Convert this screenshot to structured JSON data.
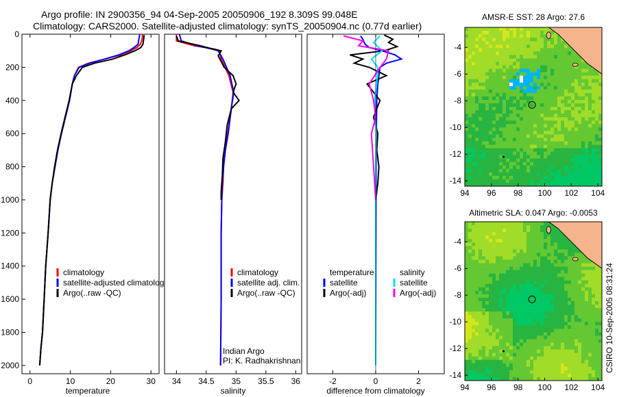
{
  "figure": {
    "title_line1": "Argo profile: IN 2900356_94 04-Sep-2005 20050906_192 8.309S 99.048E",
    "title_line2": "Climatology: CARS2000. Satellite-adjusted climatology: synTS_20050904.nc (0.77d earlier)",
    "footer_vertical": "CSIRO 10-Sep-2005 08:31:24",
    "colors": {
      "climatology": "#ff0000",
      "satellite": "#0000ff",
      "argo": "#000000",
      "salinity_satellite": "#00e0ff",
      "salinity_argo": "#ff00ff",
      "land": "#f5b48c",
      "sea_green": "#3cb44b"
    }
  },
  "chart_data": [
    {
      "id": "temperature",
      "type": "line",
      "xlabel": "temperature",
      "ylabel": "",
      "xlim": [
        -2,
        32
      ],
      "ylim": [
        2050,
        0
      ],
      "xticks": [
        0,
        10,
        20,
        30
      ],
      "yticks": [
        0,
        200,
        400,
        600,
        800,
        1000,
        1200,
        1400,
        1600,
        1800,
        2000
      ],
      "legend": [
        "climatology",
        "satellite-adjusted climatology",
        "Argo(..raw -QC)"
      ],
      "series": [
        {
          "name": "climatology",
          "color": "climatology",
          "x": [
            27.9,
            27.8,
            27.4,
            26.5,
            25.0,
            22.5,
            18.5,
            14.5,
            12.0,
            11.0,
            10.5,
            9.8,
            8.8,
            7.8,
            6.9,
            6.2,
            5.5,
            5.0,
            4.5,
            3.9,
            3.5,
            3.1,
            2.7,
            2.4
          ],
          "y": [
            0,
            30,
            60,
            80,
            100,
            125,
            150,
            175,
            200,
            250,
            300,
            400,
            500,
            600,
            700,
            800,
            900,
            1000,
            1200,
            1400,
            1600,
            1800,
            1900,
            2000
          ]
        },
        {
          "name": "satellite",
          "color": "satellite",
          "x": [
            27.2,
            27.0,
            26.8,
            25.8,
            24.5,
            22.0,
            18.5,
            14.8,
            12.2,
            11.0,
            10.5,
            9.8,
            8.8,
            7.8,
            6.9,
            6.2,
            5.5,
            5.0,
            4.5,
            3.9,
            3.5,
            3.1,
            2.7,
            2.4
          ],
          "y": [
            0,
            30,
            60,
            80,
            100,
            125,
            150,
            175,
            200,
            250,
            300,
            400,
            500,
            600,
            700,
            800,
            900,
            1000,
            1200,
            1400,
            1600,
            1800,
            1900,
            2000
          ]
        },
        {
          "name": "Argo(..raw -QC)",
          "color": "argo",
          "x": [
            28.3,
            28.2,
            28.0,
            27.5,
            26.0,
            23.5,
            20.5,
            16.0,
            13.0,
            11.5,
            10.5,
            9.7,
            8.7,
            7.7,
            6.8,
            6.1,
            5.5,
            5.0,
            4.5,
            3.9,
            3.5,
            3.1,
            2.7,
            2.4
          ],
          "y": [
            5,
            30,
            60,
            80,
            100,
            125,
            150,
            175,
            200,
            250,
            300,
            400,
            500,
            600,
            700,
            800,
            900,
            1000,
            1200,
            1400,
            1600,
            1800,
            1900,
            2000
          ]
        }
      ]
    },
    {
      "id": "salinity",
      "type": "line",
      "xlabel": "salinity",
      "ylabel": "",
      "xlim": [
        33.8,
        36.1
      ],
      "ylim": [
        2050,
        0
      ],
      "xticks": [
        34,
        34.5,
        35,
        35.5,
        36
      ],
      "xtick_labels": [
        "34",
        "34.5",
        "35",
        "35.5",
        "36"
      ],
      "legend": [
        "climatology",
        "satellite adj. clim.",
        "Argo(..raw -QC)"
      ],
      "annotation": [
        "Indian Argo",
        "PI: K. Radhakrishnan"
      ],
      "series": [
        {
          "name": "climatology",
          "color": "climatology",
          "x": [
            34.0,
            34.0,
            34.3,
            34.65,
            34.72,
            34.75,
            34.88,
            34.95,
            34.92,
            34.87,
            34.82,
            34.79,
            34.78,
            34.76,
            34.75,
            34.75,
            34.74
          ],
          "y": [
            0,
            40,
            70,
            90,
            100,
            150,
            250,
            350,
            450,
            600,
            700,
            800,
            900,
            1000,
            1200,
            1600,
            2000
          ]
        },
        {
          "name": "satellite",
          "color": "satellite",
          "x": [
            34.05,
            34.08,
            34.35,
            34.6,
            34.7,
            34.78,
            34.9,
            34.96,
            34.92,
            34.86,
            34.82,
            34.79,
            34.77,
            34.76,
            34.75,
            34.75,
            34.74
          ],
          "y": [
            0,
            40,
            70,
            90,
            100,
            150,
            250,
            350,
            450,
            600,
            700,
            800,
            900,
            1000,
            1200,
            1600,
            2000
          ]
        },
        {
          "name": "Argo(..raw -QC)",
          "color": "argo",
          "x": [
            34.0,
            34.03,
            34.4,
            34.62,
            34.75,
            34.7,
            34.8,
            34.95,
            35.0,
            34.95,
            35.05,
            34.92,
            34.85,
            34.82,
            34.78,
            34.77,
            34.75,
            34.75
          ],
          "y": [
            10,
            40,
            70,
            90,
            100,
            130,
            200,
            250,
            300,
            350,
            400,
            450,
            550,
            650,
            750,
            850,
            950,
            1000
          ]
        }
      ]
    },
    {
      "id": "difference",
      "type": "line",
      "xlabel": "difference from climatology",
      "ylabel": "",
      "xlim": [
        -3.2,
        3.2
      ],
      "ylim": [
        2050,
        0
      ],
      "xticks": [
        -2,
        0,
        2
      ],
      "legend_left_header": "temperature",
      "legend_right_header": "salinity",
      "legend_left": [
        "satellite",
        "Argo(-adj)"
      ],
      "legend_right": [
        "satellite",
        "Argo(-adj)"
      ],
      "series": [
        {
          "name": "temperature satellite",
          "color": "satellite",
          "x": [
            -0.7,
            -0.6,
            -0.5,
            -0.3,
            0.3,
            0.9,
            1.2,
            0.5,
            0.2,
            0.1,
            0.05,
            0.03,
            0.02,
            0.02,
            0.01,
            0.0
          ],
          "y": [
            10,
            30,
            60,
            80,
            100,
            125,
            150,
            175,
            200,
            300,
            400,
            600,
            800,
            1000,
            1500,
            2000
          ]
        },
        {
          "name": "temperature Argo(-adj)",
          "color": "argo",
          "x": [
            0.4,
            0.8,
            0.6,
            1.0,
            0.4,
            -1.2,
            -0.6,
            -1.0,
            -0.3,
            0.5,
            -0.4,
            0.2,
            -0.1,
            0.1,
            0.05,
            0.15,
            0.1,
            0.05,
            0.0
          ],
          "y": [
            5,
            30,
            50,
            75,
            100,
            125,
            150,
            175,
            200,
            250,
            300,
            400,
            500,
            600,
            700,
            800,
            900,
            950,
            1000
          ]
        },
        {
          "name": "salinity satellite",
          "color": "salinity_satellite",
          "x": [
            0.2,
            -0.1,
            0.3,
            -0.2,
            0.1,
            0.05,
            -0.05,
            0.02,
            0.0,
            0.0,
            0.0
          ],
          "y": [
            10,
            50,
            100,
            150,
            200,
            300,
            400,
            600,
            800,
            1200,
            2000
          ]
        },
        {
          "name": "salinity Argo(-adj)",
          "color": "salinity_argo",
          "x": [
            -1.5,
            -0.6,
            -0.8,
            0.6,
            0.5,
            0.2,
            -0.3,
            -0.1,
            0.0,
            -0.2,
            -0.1,
            0.0
          ],
          "y": [
            10,
            40,
            70,
            100,
            150,
            200,
            300,
            400,
            500,
            600,
            800,
            1000
          ]
        }
      ]
    },
    {
      "id": "amsre-map",
      "type": "heatmap",
      "title": "AMSR-E SST: 28  Argo: 27.6",
      "xlim": [
        94,
        104.3
      ],
      "ylim": [
        -14.4,
        -2.5
      ],
      "xticks": [
        94,
        96,
        98,
        100,
        102,
        104
      ],
      "yticks": [
        -4,
        -6,
        -8,
        -10,
        -12,
        -14
      ],
      "marker": {
        "lon": 99.05,
        "lat": -8.31
      },
      "colormap": [
        "#00a0ff",
        "#00c864",
        "#28b440",
        "#64c832",
        "#a0dc28",
        "#d2e61e",
        "#ffd200",
        "#ff8c00"
      ]
    },
    {
      "id": "sla-map",
      "type": "heatmap",
      "title": "Altimetric SLA: 0.047  Argo: -0.0053",
      "xlim": [
        94,
        104.3
      ],
      "ylim": [
        -14.4,
        -2.5
      ],
      "xticks": [
        94,
        96,
        98,
        100,
        102,
        104
      ],
      "yticks": [
        -4,
        -6,
        -8,
        -10,
        -12,
        -14
      ],
      "marker": {
        "lon": 99.05,
        "lat": -8.31
      },
      "colormap": [
        "#00a0ff",
        "#00c864",
        "#28b440",
        "#64c832",
        "#a0dc28",
        "#d2e61e",
        "#ffd200",
        "#ff8c00"
      ]
    }
  ]
}
